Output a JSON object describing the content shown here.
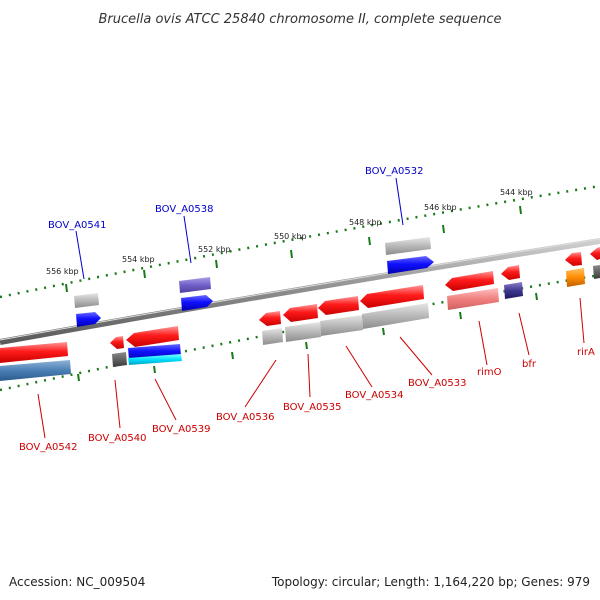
{
  "title": "Brucella ovis ATCC 25840 chromosome II, complete sequence",
  "footer": {
    "accession": "Accession: NC_009504",
    "summary": "Topology: circular; Length: 1,164,220 bp; Genes: 979"
  },
  "ticks": [
    "556 kbp",
    "554 kbp",
    "552 kbp",
    "550 kbp",
    "548 kbp",
    "546 kbp",
    "544 kbp"
  ],
  "labels_forward": [
    "BOV_A0541",
    "BOV_A0538",
    "BOV_A0532"
  ],
  "labels_reverse": [
    "BOV_A0542",
    "BOV_A0540",
    "BOV_A0539",
    "BOV_A0536",
    "BOV_A0535",
    "BOV_A0534",
    "BOV_A0533",
    "rimO",
    "bfr",
    "rirA"
  ],
  "colors": {
    "forward_label": "#0000cc",
    "reverse_label": "#cc0000",
    "backbone": "#8c8c8c",
    "tick_marks": "#1a7a1a",
    "cds_forward": "#0000ff",
    "cds_reverse": "#ff0000",
    "gene_grey": "#aaaaaa"
  }
}
